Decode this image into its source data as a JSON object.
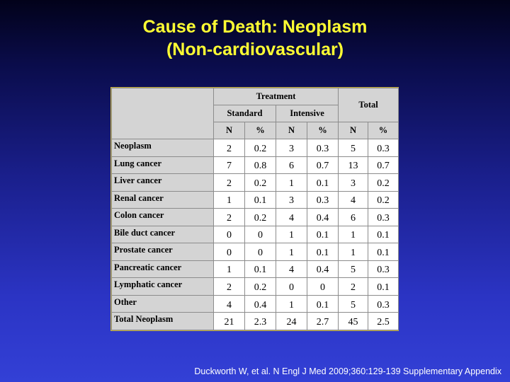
{
  "title": {
    "line1": "Cause of Death: Neoplasm",
    "line2": "(Non-cardiovascular)"
  },
  "table": {
    "group_header": "Treatment",
    "standard_header": "Standard",
    "intensive_header": "Intensive",
    "total_header": "Total",
    "sub_headers": [
      "N",
      "%",
      "N",
      "%",
      "N",
      "%"
    ],
    "rows": [
      {
        "label": "Neoplasm",
        "values": [
          "2",
          "0.2",
          "3",
          "0.3",
          "5",
          "0.3"
        ]
      },
      {
        "label": "Lung cancer",
        "values": [
          "7",
          "0.8",
          "6",
          "0.7",
          "13",
          "0.7"
        ]
      },
      {
        "label": "Liver cancer",
        "values": [
          "2",
          "0.2",
          "1",
          "0.1",
          "3",
          "0.2"
        ]
      },
      {
        "label": "Renal cancer",
        "values": [
          "1",
          "0.1",
          "3",
          "0.3",
          "4",
          "0.2"
        ]
      },
      {
        "label": "Colon cancer",
        "values": [
          "2",
          "0.2",
          "4",
          "0.4",
          "6",
          "0.3"
        ]
      },
      {
        "label": "Bile duct cancer",
        "values": [
          "0",
          "0",
          "1",
          "0.1",
          "1",
          "0.1"
        ]
      },
      {
        "label": "Prostate cancer",
        "values": [
          "0",
          "0",
          "1",
          "0.1",
          "1",
          "0.1"
        ]
      },
      {
        "label": "Pancreatic cancer",
        "values": [
          "1",
          "0.1",
          "4",
          "0.4",
          "5",
          "0.3"
        ]
      },
      {
        "label": "Lymphatic cancer",
        "values": [
          "2",
          "0.2",
          "0",
          "0",
          "2",
          "0.1"
        ]
      },
      {
        "label": "Other",
        "values": [
          "4",
          "0.4",
          "1",
          "0.1",
          "5",
          "0.3"
        ]
      },
      {
        "label": "Total  Neoplasm",
        "values": [
          "21",
          "2.3",
          "24",
          "2.7",
          "45",
          "2.5"
        ]
      }
    ]
  },
  "citation": "Duckworth W, et al. N Engl J Med 2009;360:129-139 Supplementary Appendix"
}
